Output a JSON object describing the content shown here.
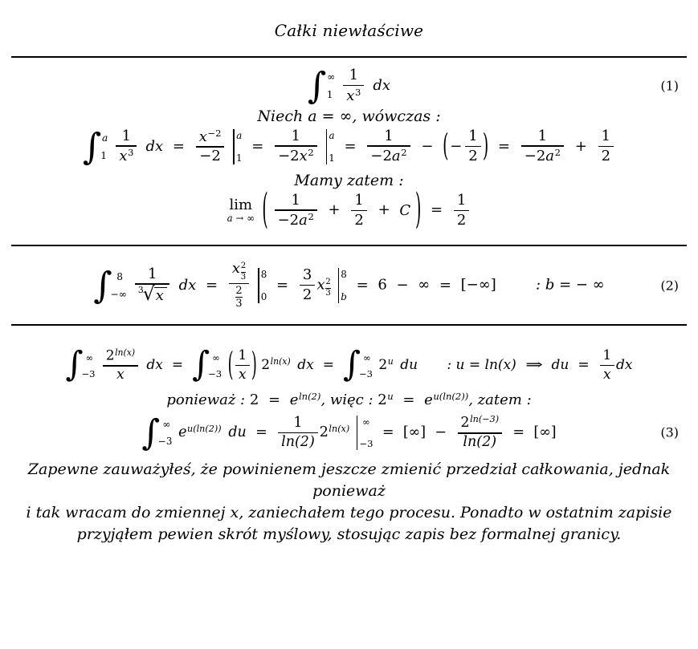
{
  "page": {
    "title": "Całki niewłaściwe",
    "background": "#ffffff",
    "text_color": "#000000"
  },
  "sym": {
    "integral": "∫",
    "infinity": "∞",
    "neg_infinity": "−∞",
    "equals": "=",
    "plus": "+",
    "minus": "−",
    "zero": "0",
    "one": "1",
    "two": "2",
    "three": "3",
    "six": "6",
    "eight": "8",
    "neg_two": "−2",
    "neg_three": "−3",
    "x": "x",
    "a": "a",
    "b": "b",
    "u": "u",
    "C": "C",
    "e": "e",
    "dx": "dx",
    "du": "du",
    "lim": "lim",
    "lim_sub": "a → ∞",
    "paren_open": "(",
    "paren_close": ")",
    "bracket_inf": "[∞]",
    "bracket_neg_inf": "[−∞]",
    "comma": ",",
    "implies": "⇒",
    "ln2": "ln(2)",
    "lnx": "ln(x)",
    "ln_neg3": "ln(−3)",
    "u_ln2": "u(ln(2))",
    "root_index": "3",
    "root_sign": "√"
  },
  "sec1": {
    "eqno": "(1)",
    "line_niech": "Niech a = ∞,  wówczas :",
    "line_mamy": "Mamy zatem :"
  },
  "sec2": {
    "eqno": "(2)",
    "condition": ": b = − ∞"
  },
  "sec3": {
    "eqno": "(3)",
    "substitution": ": u = ln(x)",
    "poniewaz": "ponieważ :",
    "wiec": "więc :",
    "zatem": "zatem :"
  },
  "footer": {
    "lines": [
      "Zapewne zauważyłeś, że powinienem jeszcze zmienić przedział całkowania, jednak ponieważ",
      "i tak wracam do zmiennej x, zaniechałem tego procesu. Ponadto w ostatnim zapisie",
      "przyjąłem pewien skrót myślowy, stosując zapis bez formalnej granicy."
    ]
  }
}
